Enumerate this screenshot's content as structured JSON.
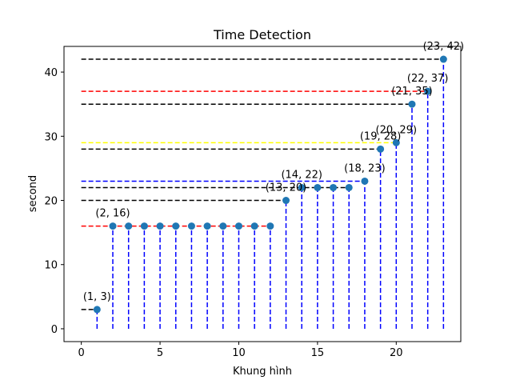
{
  "chart_data": {
    "type": "scatter",
    "title": "Time Detection",
    "xlabel": "Khung hình",
    "ylabel": "second",
    "xlim": [
      -1.1,
      24.1
    ],
    "ylim": [
      -2.0,
      44.0
    ],
    "xticks": [
      0,
      5,
      10,
      15,
      20
    ],
    "yticks": [
      0,
      10,
      20,
      30,
      40
    ],
    "grid": false,
    "point_color": "#1f77b4",
    "vline_color": "#0000ff",
    "points": [
      {
        "x": 1,
        "y": 3
      },
      {
        "x": 2,
        "y": 16
      },
      {
        "x": 3,
        "y": 16
      },
      {
        "x": 4,
        "y": 16
      },
      {
        "x": 5,
        "y": 16
      },
      {
        "x": 6,
        "y": 16
      },
      {
        "x": 7,
        "y": 16
      },
      {
        "x": 8,
        "y": 16
      },
      {
        "x": 9,
        "y": 16
      },
      {
        "x": 10,
        "y": 16
      },
      {
        "x": 11,
        "y": 16
      },
      {
        "x": 12,
        "y": 16
      },
      {
        "x": 13,
        "y": 20
      },
      {
        "x": 14,
        "y": 22
      },
      {
        "x": 15,
        "y": 22
      },
      {
        "x": 16,
        "y": 22
      },
      {
        "x": 17,
        "y": 22
      },
      {
        "x": 18,
        "y": 23
      },
      {
        "x": 19,
        "y": 28
      },
      {
        "x": 20,
        "y": 29
      },
      {
        "x": 21,
        "y": 35
      },
      {
        "x": 22,
        "y": 37
      },
      {
        "x": 23,
        "y": 42
      }
    ],
    "annotations": [
      {
        "x": 1,
        "y": 3,
        "text": "(1, 3)"
      },
      {
        "x": 2,
        "y": 16,
        "text": "(2, 16)"
      },
      {
        "x": 13,
        "y": 20,
        "text": "(13, 20)"
      },
      {
        "x": 14,
        "y": 22,
        "text": "(14, 22)"
      },
      {
        "x": 18,
        "y": 23,
        "text": "(18, 23)"
      },
      {
        "x": 19,
        "y": 28,
        "text": "(19, 28)"
      },
      {
        "x": 20,
        "y": 29,
        "text": "(20, 29)"
      },
      {
        "x": 21,
        "y": 35,
        "text": "(21, 35)"
      },
      {
        "x": 22,
        "y": 37,
        "text": "(22, 37)"
      },
      {
        "x": 23,
        "y": 42,
        "text": "(23, 42)"
      }
    ],
    "hlines": [
      {
        "y": 3,
        "x_end": 1,
        "color": "#000000"
      },
      {
        "y": 16,
        "x_end": 12,
        "color": "#ff0000"
      },
      {
        "y": 20,
        "x_end": 13,
        "color": "#000000"
      },
      {
        "y": 22,
        "x_end": 17,
        "color": "#000000"
      },
      {
        "y": 23,
        "x_end": 18,
        "color": "#0000ff"
      },
      {
        "y": 28,
        "x_end": 19,
        "color": "#000000"
      },
      {
        "y": 29,
        "x_end": 20,
        "color": "#ffff00"
      },
      {
        "y": 35,
        "x_end": 21,
        "color": "#000000"
      },
      {
        "y": 37,
        "x_end": 22,
        "color": "#ff0000"
      },
      {
        "y": 42,
        "x_end": 23,
        "color": "#000000"
      }
    ]
  }
}
